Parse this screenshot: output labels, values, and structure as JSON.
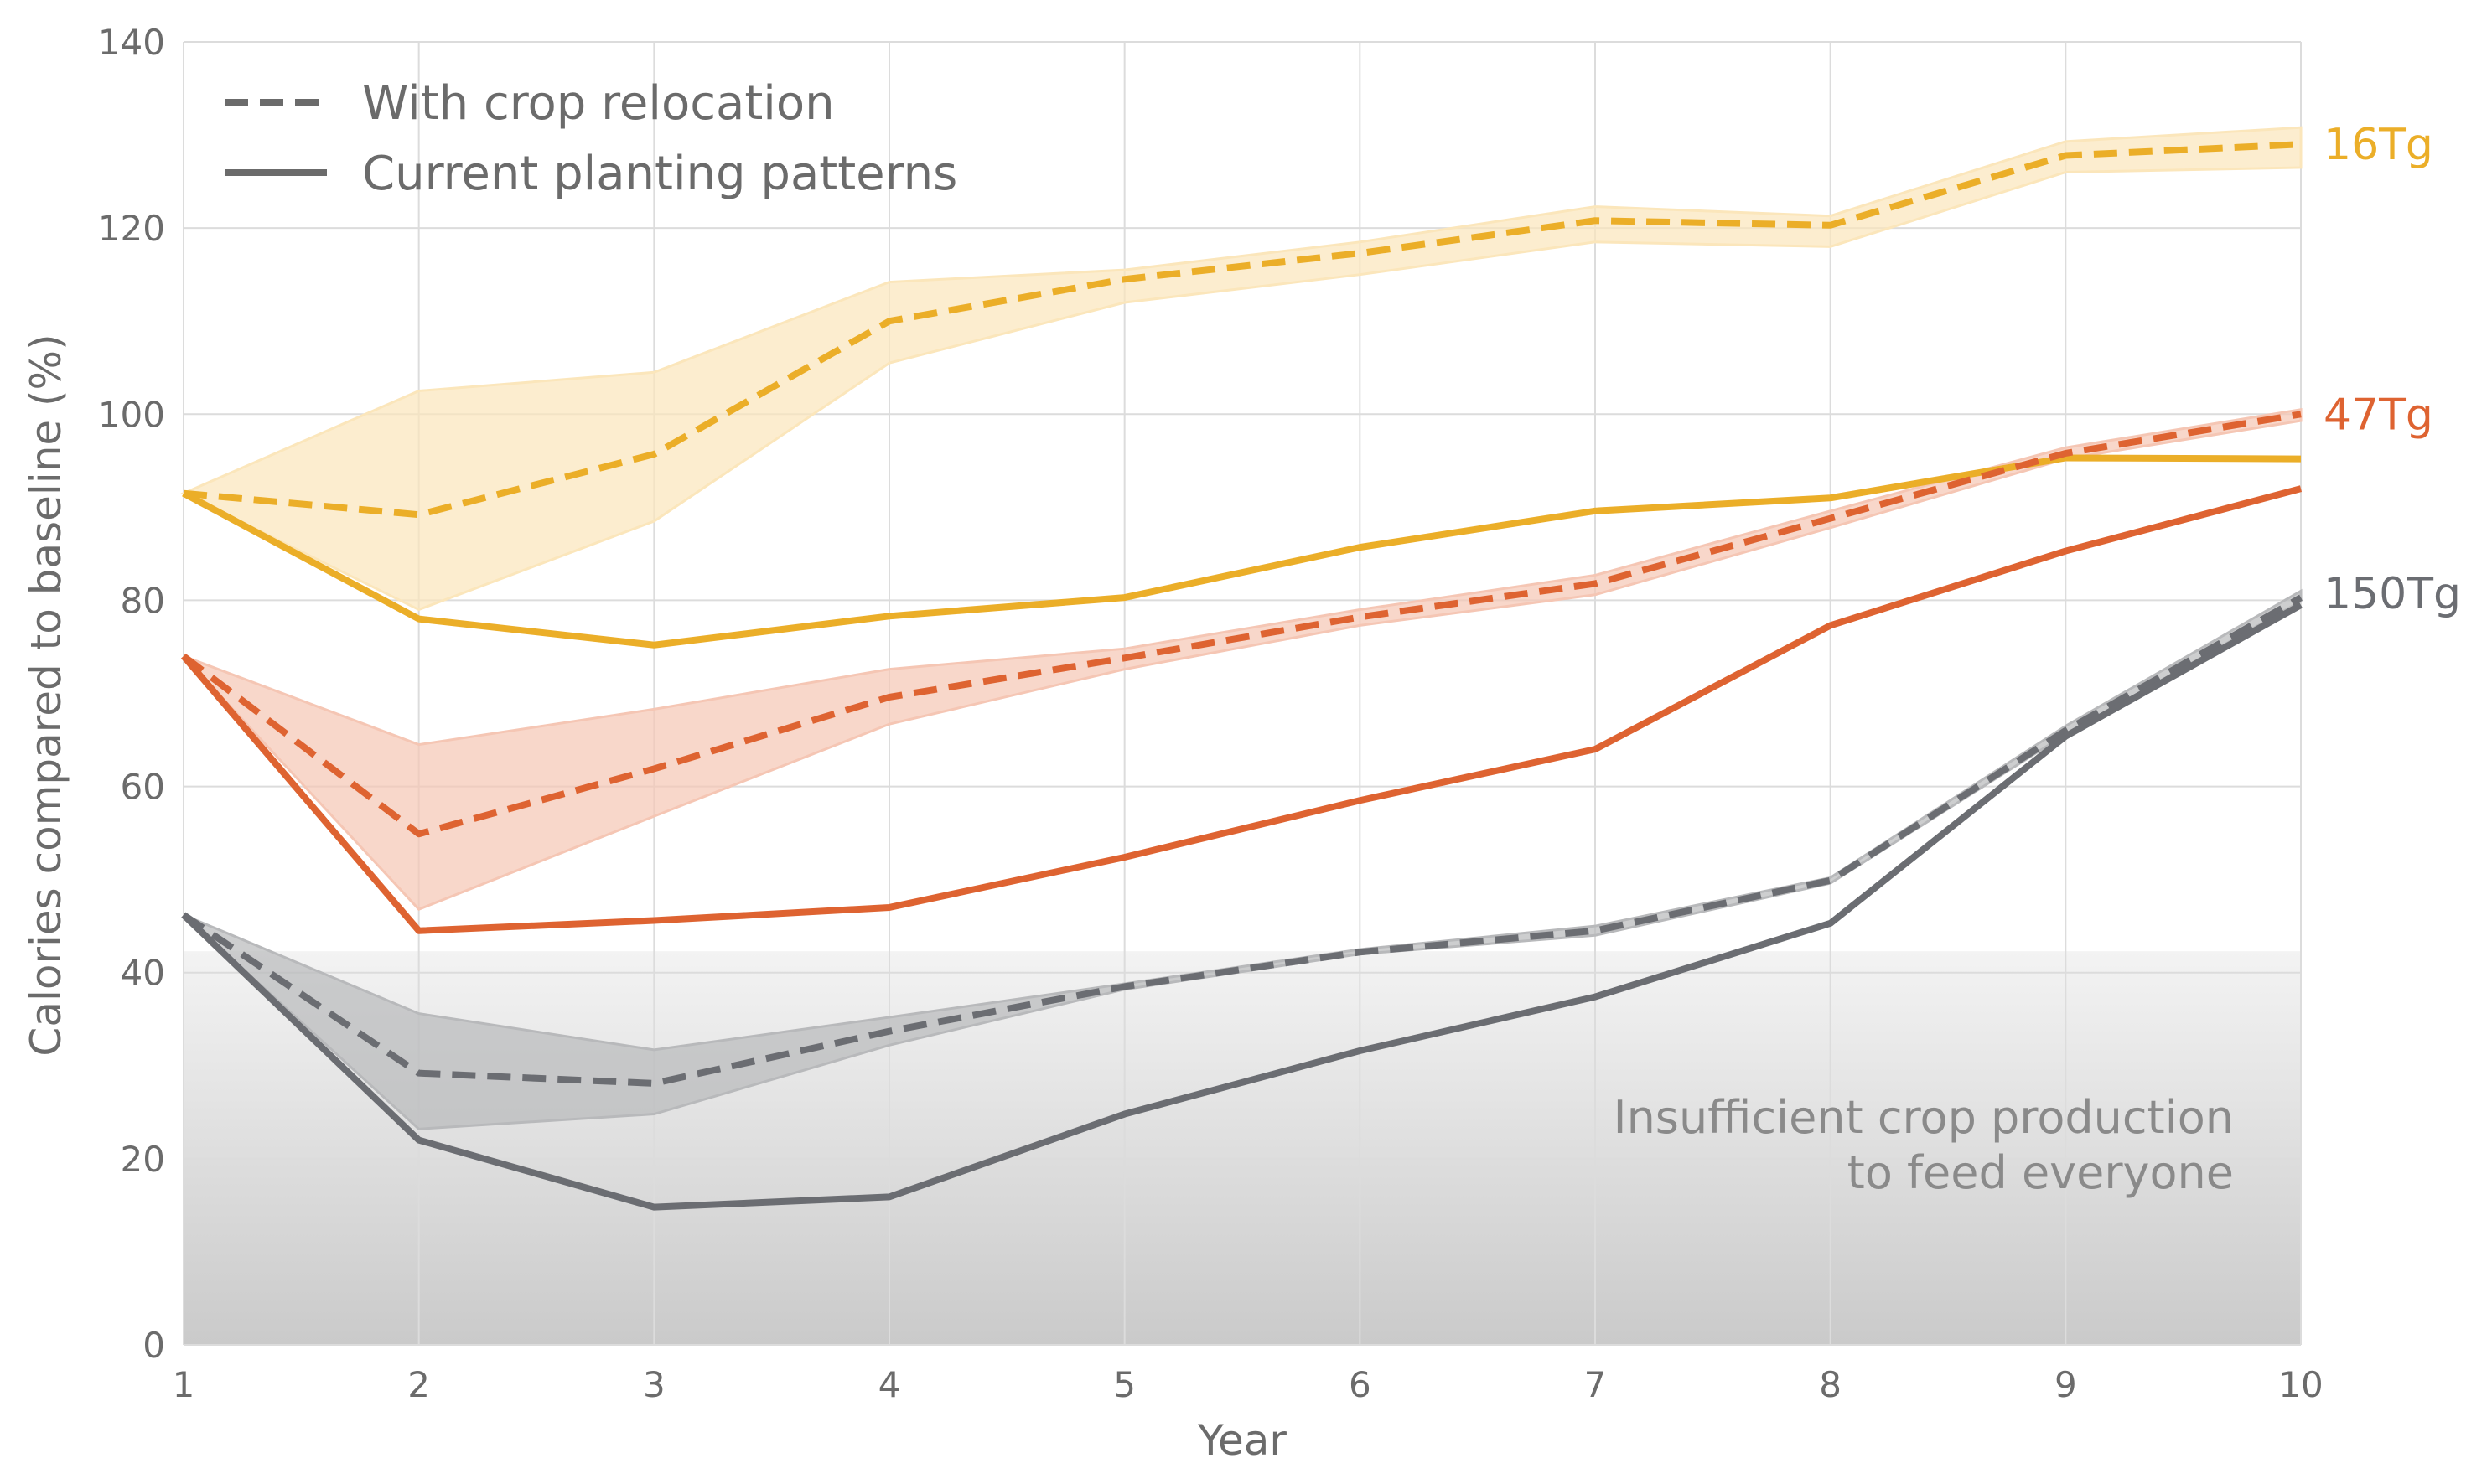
{
  "chart_data": {
    "type": "line",
    "title": "",
    "xlabel": "Year",
    "ylabel": "Calories compared to baseline (%)",
    "xlim": [
      1,
      10
    ],
    "ylim": [
      0,
      140
    ],
    "x": [
      1,
      2,
      3,
      4,
      5,
      6,
      7,
      8,
      9,
      10
    ],
    "xticks": [
      "1",
      "2",
      "3",
      "4",
      "5",
      "6",
      "7",
      "8",
      "9",
      "10"
    ],
    "yticks": [
      "0",
      "20",
      "40",
      "60",
      "80",
      "100",
      "120",
      "140"
    ],
    "ytick_values": [
      0,
      20,
      40,
      60,
      80,
      100,
      120,
      140
    ],
    "grid": true,
    "legend": {
      "placement": "top-left",
      "entries": [
        {
          "label": "With crop relocation",
          "style": "dashed"
        },
        {
          "label": "Current planting patterns",
          "style": "solid"
        }
      ]
    },
    "shaded_region": {
      "label": "Insufficient crop production\nto feed everyone",
      "line1": "Insufficient crop production",
      "line2": "to feed everyone",
      "y_range": [
        0,
        42.3
      ]
    },
    "series": [
      {
        "name": "16Tg",
        "scenario": "With crop relocation",
        "style": "dashed",
        "color": "#ebae28",
        "values": [
          91.5,
          89.2,
          95.7,
          110.0,
          114.5,
          117.3,
          120.8,
          120.3,
          127.8,
          129.0
        ],
        "band_lower": [
          91.5,
          79.0,
          88.5,
          105.5,
          112.0,
          115.0,
          118.5,
          118.0,
          126.0,
          126.5
        ],
        "band_upper": [
          91.5,
          102.5,
          104.5,
          114.2,
          115.5,
          118.5,
          122.3,
          121.3,
          129.3,
          130.8
        ]
      },
      {
        "name": "16Tg",
        "scenario": "Current planting patterns",
        "style": "solid",
        "color": "#ebae28",
        "values": [
          91.5,
          78.0,
          75.2,
          78.3,
          80.3,
          85.7,
          89.6,
          91.0,
          95.3,
          95.2
        ]
      },
      {
        "name": "47Tg",
        "scenario": "With crop relocation",
        "style": "dashed",
        "color": "#de6331",
        "values": [
          74.0,
          54.9,
          61.9,
          69.6,
          73.8,
          78.2,
          81.8,
          88.8,
          95.8,
          100.0
        ],
        "band_lower": [
          74.0,
          46.8,
          56.8,
          66.7,
          72.6,
          77.3,
          80.6,
          87.8,
          95.2,
          99.3
        ],
        "band_upper": [
          74.0,
          64.5,
          68.3,
          72.6,
          74.8,
          79.0,
          82.7,
          89.6,
          96.4,
          100.5
        ]
      },
      {
        "name": "47Tg",
        "scenario": "Current planting patterns",
        "style": "solid",
        "color": "#de6331",
        "values": [
          74.0,
          44.5,
          45.6,
          47.0,
          52.4,
          58.5,
          64.0,
          77.3,
          85.3,
          92.0
        ]
      },
      {
        "name": "150Tg",
        "scenario": "With crop relocation",
        "style": "dashed",
        "color": "#6b6d72",
        "values": [
          46.2,
          29.2,
          28.1,
          33.7,
          38.5,
          42.2,
          44.5,
          49.9,
          66.0,
          80.3
        ],
        "band_lower": [
          46.2,
          23.2,
          24.8,
          32.2,
          38.2,
          42.0,
          44.0,
          49.6,
          65.6,
          79.9
        ],
        "band_upper": [
          46.2,
          35.6,
          31.7,
          35.2,
          38.8,
          42.5,
          45.0,
          50.2,
          66.5,
          81.0
        ]
      },
      {
        "name": "150Tg",
        "scenario": "Current planting patterns",
        "style": "solid",
        "color": "#6b6d72",
        "values": [
          46.2,
          22.0,
          14.8,
          15.9,
          24.8,
          31.6,
          37.4,
          45.3,
          65.4,
          79.5
        ]
      }
    ],
    "series_labels": [
      {
        "text": "16Tg",
        "color": "#ebae28",
        "anchor_value": 129.0
      },
      {
        "text": "47Tg",
        "color": "#de6331",
        "anchor_value": 100.0
      },
      {
        "text": "150Tg",
        "color": "#6b6d72",
        "anchor_value": 80.3
      }
    ],
    "band_fills": {
      "16Tg": "#fbe6bb",
      "47Tg": "#f5c6b4",
      "150Tg": "#b8b9bb"
    }
  }
}
